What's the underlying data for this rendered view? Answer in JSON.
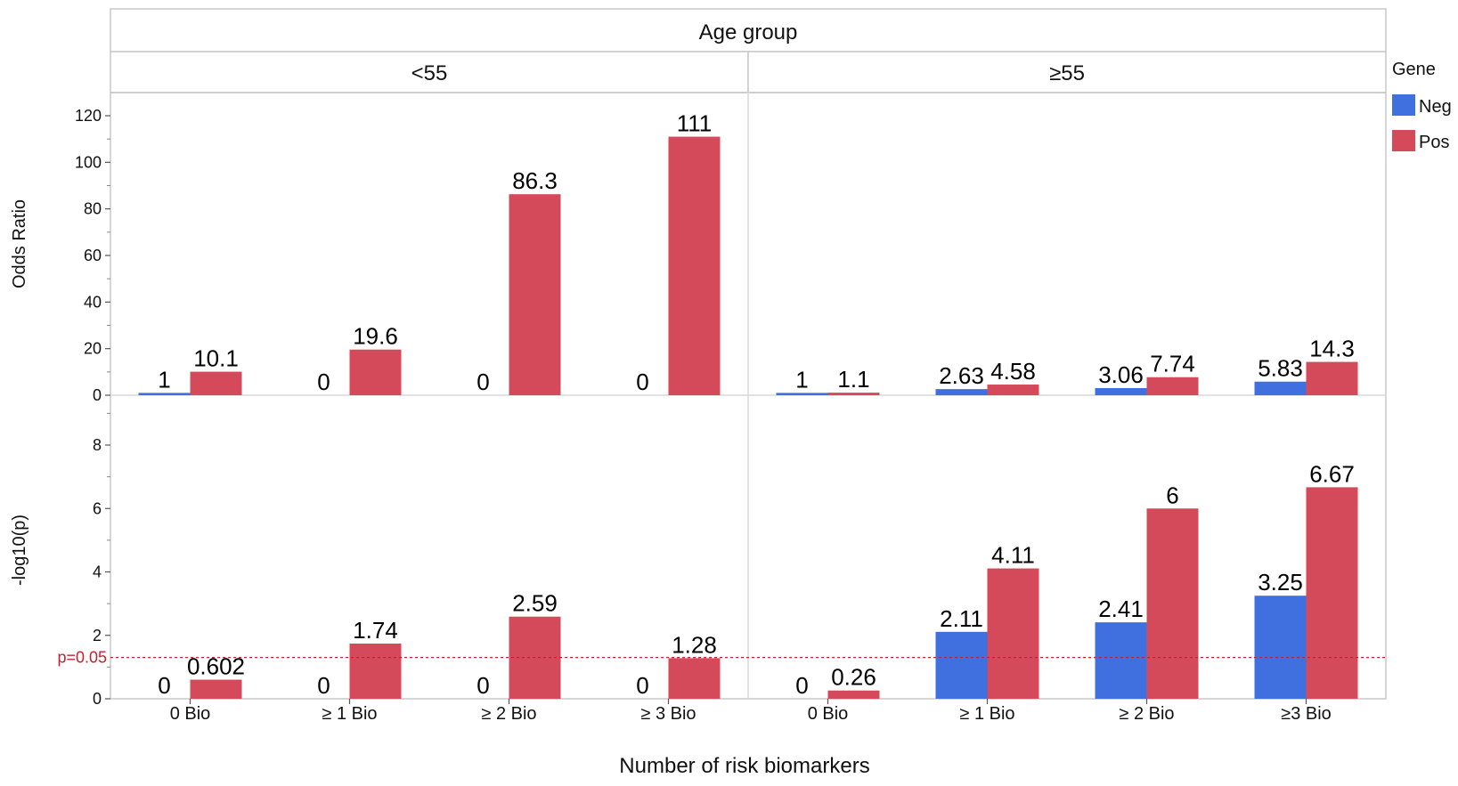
{
  "chart_data": {
    "type": "bar",
    "facet_title": "Age group",
    "facets": [
      "<55",
      "≥55"
    ],
    "categories": [
      "0 Bio",
      "≥ 1 Bio",
      "≥ 2 Bio",
      "≥ 3 Bio"
    ],
    "categories_right": [
      "0 Bio",
      "≥ 1 Bio",
      "≥ 2 Bio",
      "≥3 Bio"
    ],
    "xlabel": "Number of risk biomarkers",
    "legend": {
      "title": "Gene",
      "position": "right",
      "entries": [
        "Neg",
        "Pos"
      ]
    },
    "colors": {
      "Neg": "#4070e0",
      "Pos": "#d54a5a"
    },
    "panels": [
      {
        "ylabel": "Odds Ratio",
        "ylim": [
          0,
          120
        ],
        "yticks": [
          0,
          20,
          40,
          60,
          80,
          100,
          120
        ],
        "series": [
          {
            "name": "Neg",
            "values_left": [
              1,
              0,
              0,
              0
            ],
            "values_right": [
              1,
              2.63,
              3.06,
              5.83
            ]
          },
          {
            "name": "Pos",
            "values_left": [
              10.1,
              19.6,
              86.3,
              111
            ],
            "values_right": [
              1.1,
              4.58,
              7.74,
              14.3
            ]
          }
        ],
        "labels": {
          "Neg_left": [
            "1",
            "0",
            "0",
            "0"
          ],
          "Pos_left": [
            "10.1",
            "19.6",
            "86.3",
            "111"
          ],
          "Neg_right": [
            "1",
            "2.63",
            "3.06",
            "5.83"
          ],
          "Pos_right": [
            "1.1",
            "4.58",
            "7.74",
            "14.3"
          ]
        }
      },
      {
        "ylabel": "-log10(p)",
        "ylim": [
          0,
          9
        ],
        "yticks": [
          0,
          2,
          4,
          6,
          8
        ],
        "reference_line": {
          "value": 1.301,
          "label": "p=0.05",
          "color": "#c8202e"
        },
        "series": [
          {
            "name": "Neg",
            "values_left": [
              0,
              0,
              0,
              0
            ],
            "values_right": [
              0,
              2.11,
              2.41,
              3.25
            ]
          },
          {
            "name": "Pos",
            "values_left": [
              0.602,
              1.74,
              2.59,
              1.28
            ],
            "values_right": [
              0.26,
              4.11,
              6,
              6.67
            ]
          }
        ],
        "labels": {
          "Neg_left": [
            "0",
            "0",
            "0",
            "0"
          ],
          "Pos_left": [
            "0.602",
            "1.74",
            "2.59",
            "1.28"
          ],
          "Neg_right": [
            "0",
            "2.11",
            "2.41",
            "3.25"
          ],
          "Pos_right": [
            "0.26",
            "4.11",
            "6",
            "6.67"
          ]
        }
      }
    ]
  }
}
